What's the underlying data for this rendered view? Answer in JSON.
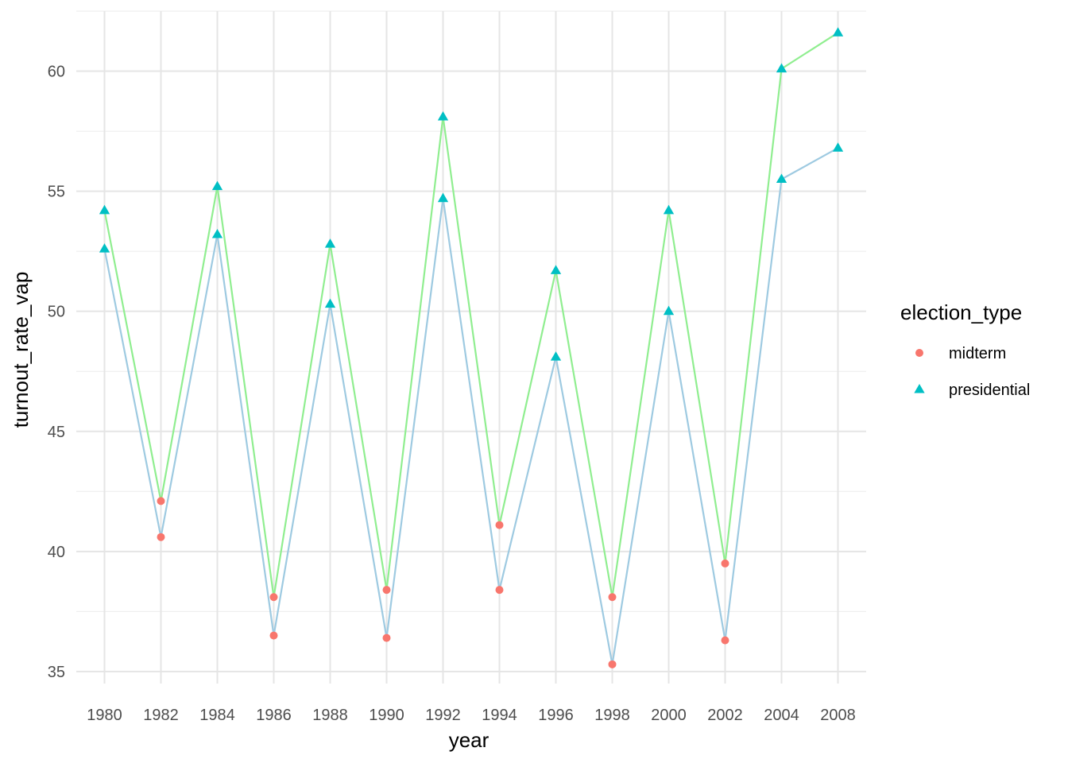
{
  "chart_data": {
    "type": "line",
    "xlabel": "year",
    "ylabel": "turnout_rate_vap",
    "categories": [
      "1980",
      "1982",
      "1984",
      "1986",
      "1988",
      "1990",
      "1992",
      "1994",
      "1996",
      "1998",
      "2000",
      "2002",
      "2004",
      "2008"
    ],
    "ylim": [
      34.5,
      62.5
    ],
    "yticks": [
      35,
      40,
      45,
      50,
      55,
      60
    ],
    "grid": true,
    "legend": {
      "title": "election_type",
      "placement": "right",
      "entries": [
        {
          "label": "midterm",
          "shape": "circle",
          "color": "#F8766D"
        },
        {
          "label": "presidential",
          "shape": "triangle",
          "color": "#00BFC4"
        }
      ]
    },
    "election_type": [
      "presidential",
      "midterm",
      "presidential",
      "midterm",
      "presidential",
      "midterm",
      "presidential",
      "midterm",
      "presidential",
      "midterm",
      "presidential",
      "midterm",
      "presidential",
      "presidential"
    ],
    "series": [
      {
        "line_color": "#90EE90",
        "values": [
          54.2,
          42.1,
          55.2,
          38.1,
          52.8,
          38.4,
          58.1,
          41.1,
          51.7,
          38.1,
          54.2,
          39.5,
          60.1,
          61.6
        ]
      },
      {
        "line_color": "#9ECAE1",
        "values": [
          52.6,
          40.6,
          53.2,
          36.5,
          50.3,
          36.4,
          54.7,
          38.4,
          48.1,
          35.3,
          50.0,
          36.3,
          55.5,
          56.8
        ]
      }
    ]
  }
}
